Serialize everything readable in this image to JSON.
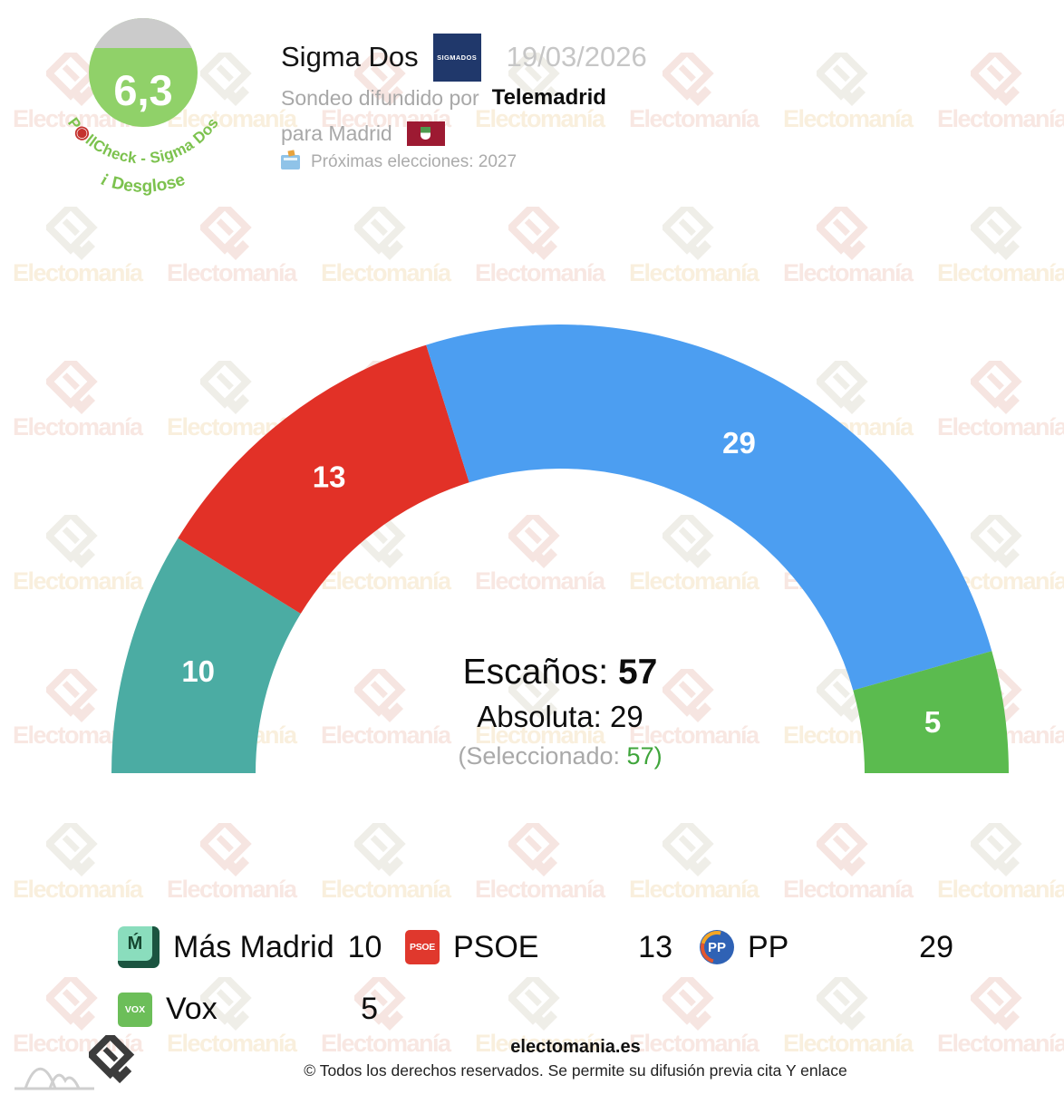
{
  "badge": {
    "score": "6,3",
    "brand_prefix": "P",
    "brand_dart": "◉",
    "brand_suffix": "llCheck - Sigma Dos",
    "info_symbol": "i",
    "breakdown_label": "Desglose"
  },
  "header": {
    "pollster": "Sigma Dos",
    "pollster_logo_text": "SIGMADOS",
    "date": "19/03/2026",
    "diffusion_prefix": "Sondeo difundido por",
    "diffusion_medium": "Telemadrid",
    "region_label": "para Madrid",
    "next_elections_label": "Próximas elecciones: 2027"
  },
  "chart_data": {
    "type": "hemicycle",
    "total_seats": 57,
    "majority": 29,
    "selected": 57,
    "center_labels": {
      "seats_label": "Escaños:",
      "seats_value": "57",
      "majority_label": "Absoluta:",
      "majority_value": "29",
      "selected_label": "(Seleccionado:",
      "selected_value": "57",
      "selected_close": ")"
    },
    "series": [
      {
        "name": "Más Madrid",
        "slug": "mas-madrid",
        "seats": 10,
        "color": "#4BACA3"
      },
      {
        "name": "PSOE",
        "slug": "psoe",
        "seats": 13,
        "color": "#E23127"
      },
      {
        "name": "PP",
        "slug": "pp",
        "seats": 29,
        "color": "#4C9EF1"
      },
      {
        "name": "Vox",
        "slug": "vox",
        "seats": 5,
        "color": "#5BBB4F"
      }
    ]
  },
  "legend": {
    "items": [
      {
        "name": "Más Madrid",
        "slug": "mas-madrid",
        "value": "10",
        "icon_text": "Ḿ"
      },
      {
        "name": "PSOE",
        "slug": "psoe",
        "value": "13",
        "icon_text": "PSOE"
      },
      {
        "name": "PP",
        "slug": "pp",
        "value": "29",
        "icon_text": "PP"
      },
      {
        "name": "Vox",
        "slug": "vox",
        "value": "5",
        "icon_text": "VOX"
      }
    ]
  },
  "watermark": {
    "text": "Electomanía"
  },
  "footer": {
    "site": "electomania.es",
    "copyright": "© Todos los derechos reservados. Se permite su difusión previa cita Y enlace"
  },
  "colors": {
    "badge_green": "#90D169",
    "badge_gray": "#CBCBCB",
    "arc_text_green": "#7CC24E",
    "selected_green": "#3FA53B",
    "muted_gray": "#A8A8A8"
  }
}
